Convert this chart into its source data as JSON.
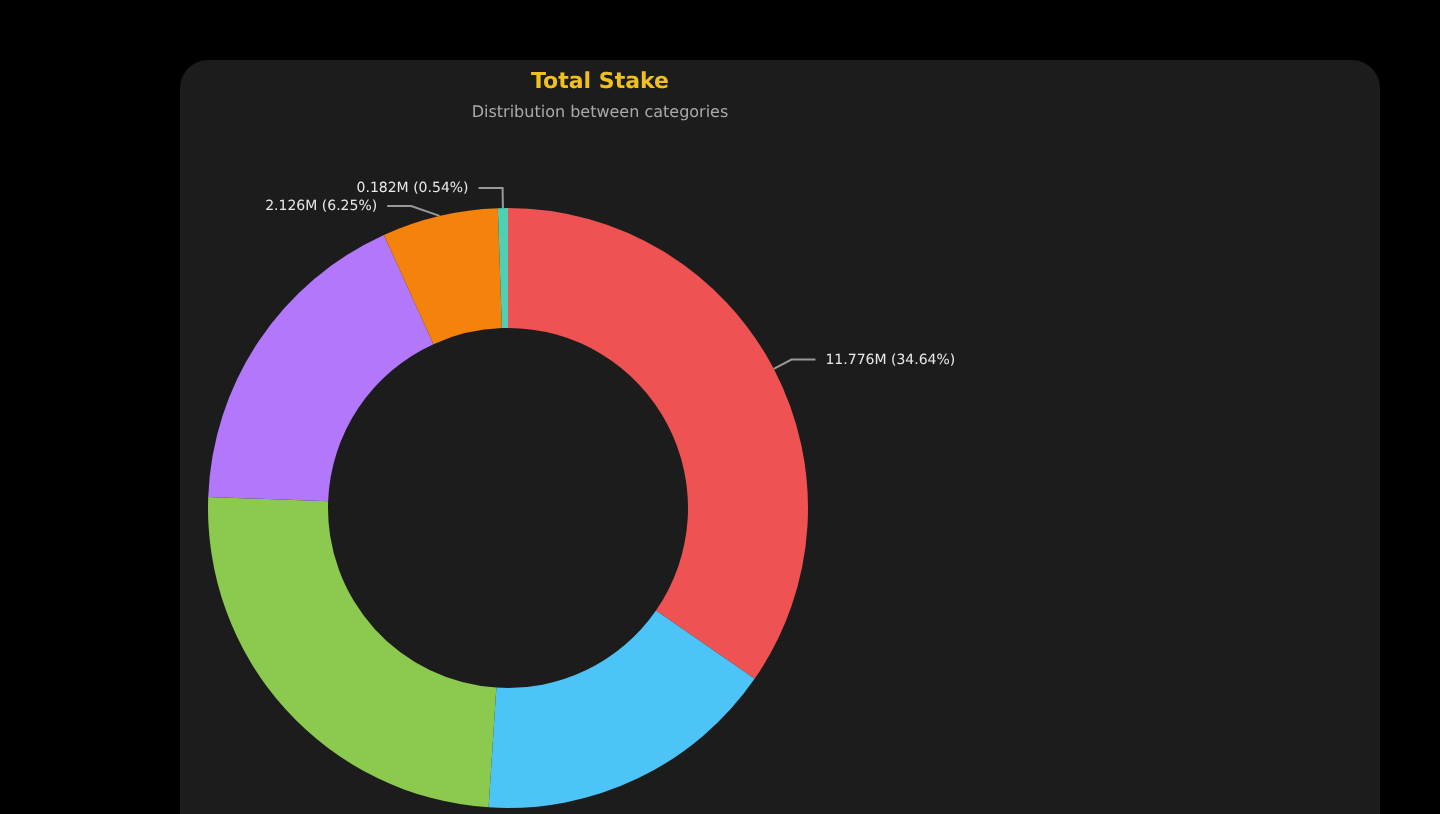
{
  "chart_data": {
    "type": "donut",
    "title": "Total Stake",
    "subtitle": "Distribution between categories",
    "categories": [
      null,
      null,
      null,
      null,
      null,
      null
    ],
    "values": [
      34.64,
      16.39,
      24.56,
      17.62,
      6.25,
      0.54
    ],
    "colors": [
      "#ee5253",
      "#4cc4f8",
      "#8bc94f",
      "#b277fb",
      "#f5820a",
      "#4fcfb4"
    ],
    "value_labels": [
      "11.776M (34.64%)",
      null,
      null,
      null,
      "2.126M (6.25%)",
      "0.182M (0.54%)"
    ]
  }
}
